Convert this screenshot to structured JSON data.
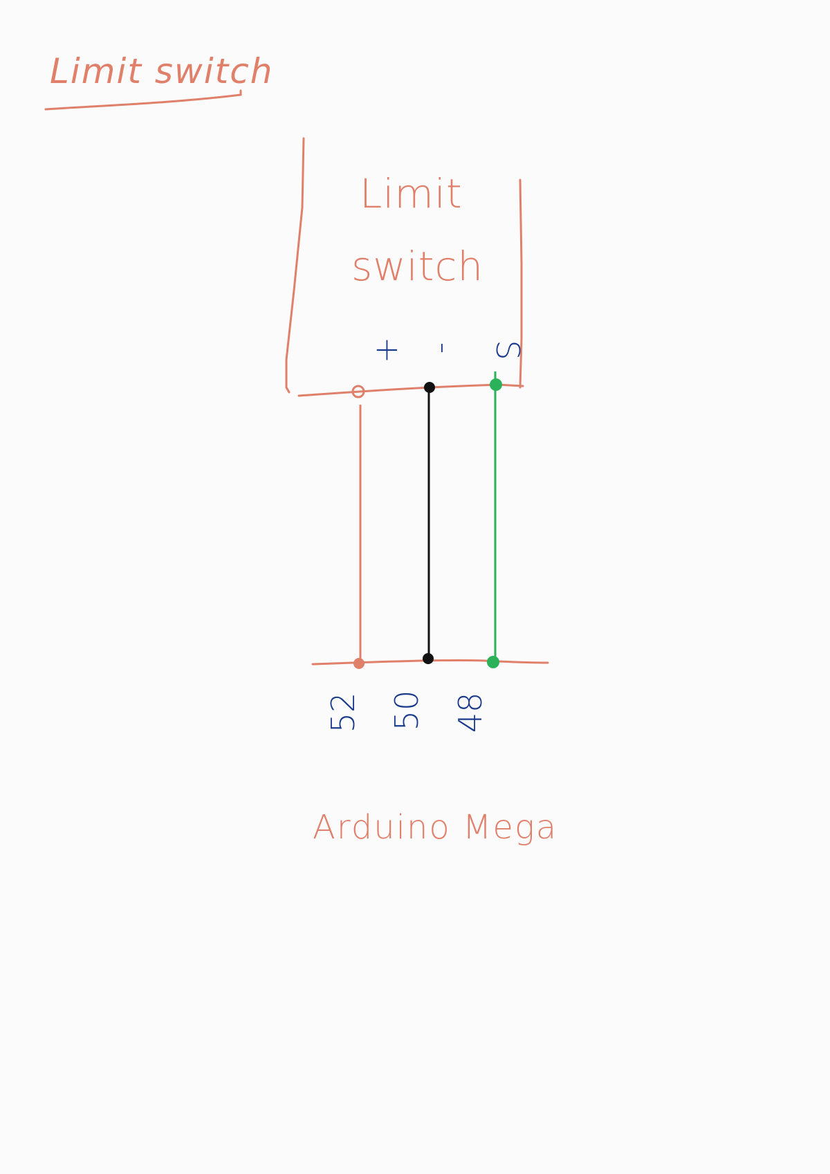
{
  "page_title": "Limit switch",
  "component": {
    "name_line1": "Limit",
    "name_line2": "switch",
    "pins": [
      {
        "label": "+",
        "color": "#e0806b"
      },
      {
        "label": "-",
        "color": "#111111"
      },
      {
        "label": "S",
        "color": "#2bb159"
      }
    ]
  },
  "board": {
    "name": "Arduino Mega",
    "pins": [
      "52",
      "50",
      "48"
    ]
  },
  "colors": {
    "sketch": "#e0806b",
    "label_ink": "#1a3a8c",
    "wire_vcc": "#e0806b",
    "wire_gnd": "#111111",
    "wire_signal": "#2bb159"
  }
}
